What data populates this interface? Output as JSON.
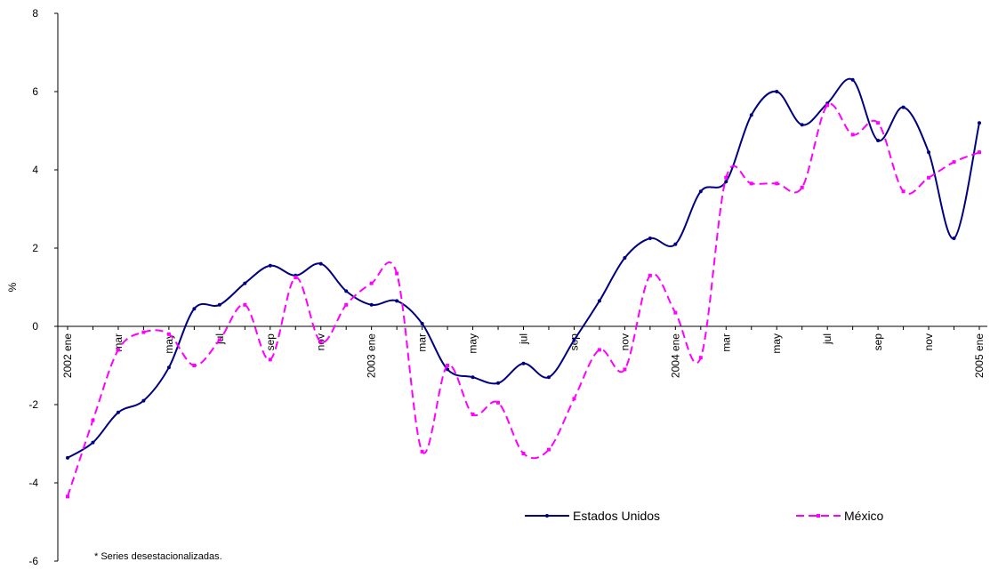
{
  "chart_data": {
    "type": "line",
    "y_label": "%",
    "note": "* Series desestacionalizadas.",
    "categories": [
      "2002 ene",
      null,
      "mar",
      null,
      "may",
      null,
      "jul",
      null,
      "sep",
      null,
      "nov",
      null,
      "2003 ene",
      null,
      "mar",
      null,
      "may",
      null,
      "jul",
      null,
      "sep",
      null,
      "nov",
      null,
      "2004 ene",
      null,
      "mar",
      null,
      "may",
      null,
      "jul",
      null,
      "sep",
      null,
      "nov",
      null,
      "2005 ene"
    ],
    "series": [
      {
        "name": "Estados Unidos",
        "color": "#000080",
        "dash": false,
        "values": [
          -3.36,
          -2.97,
          -2.2,
          -1.9,
          -1.05,
          0.45,
          0.55,
          1.1,
          1.55,
          1.3,
          1.6,
          0.9,
          0.55,
          0.65,
          0.07,
          -1.1,
          -1.3,
          -1.45,
          -0.95,
          -1.3,
          -0.35,
          0.65,
          1.75,
          2.25,
          2.1,
          3.45,
          3.7,
          5.4,
          6.0,
          5.15,
          5.7,
          6.3,
          4.75,
          5.6,
          4.45,
          2.25,
          5.2
        ]
      },
      {
        "name": "México",
        "color": "#ff00ff",
        "dash": true,
        "values": [
          -4.35,
          -2.4,
          -0.6,
          -0.15,
          -0.2,
          -1.0,
          -0.35,
          0.55,
          -0.85,
          1.25,
          -0.4,
          0.55,
          1.1,
          1.35,
          -3.2,
          -1.0,
          -2.25,
          -1.95,
          -3.25,
          -3.15,
          -1.85,
          -0.6,
          -1.1,
          1.3,
          0.35,
          -0.8,
          3.8,
          3.65,
          3.65,
          3.55,
          5.65,
          4.9,
          5.2,
          3.45,
          3.8,
          4.2,
          4.45
        ]
      }
    ],
    "ylim": [
      -6,
      8
    ],
    "yticks": [
      -6,
      -4,
      -2,
      0,
      2,
      4,
      6,
      8
    ]
  }
}
